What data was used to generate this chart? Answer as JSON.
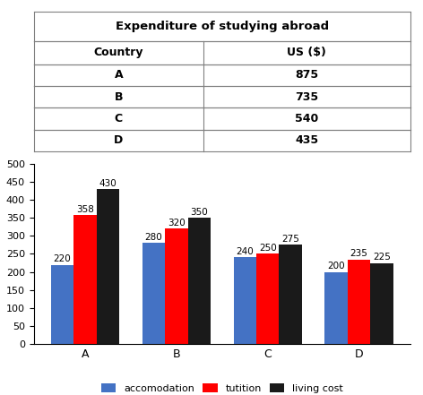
{
  "table_title": "Expenditure of studying abroad",
  "table_headers": [
    "Country",
    "US ($)"
  ],
  "table_rows": [
    [
      "A",
      "875"
    ],
    [
      "B",
      "735"
    ],
    [
      "C",
      "540"
    ],
    [
      "D",
      "435"
    ]
  ],
  "categories": [
    "A",
    "B",
    "C",
    "D"
  ],
  "accommodation": [
    220,
    280,
    240,
    200
  ],
  "tuition": [
    358,
    320,
    250,
    235
  ],
  "living_cost": [
    430,
    350,
    275,
    225
  ],
  "bar_colors": [
    "#4472C4",
    "#FF0000",
    "#1A1A1A"
  ],
  "legend_labels": [
    "accomodation",
    "tutition",
    "living cost"
  ],
  "ylim": [
    0,
    500
  ],
  "yticks": [
    0,
    50,
    100,
    150,
    200,
    250,
    300,
    350,
    400,
    450,
    500
  ],
  "bar_width": 0.25,
  "col_split": 0.45
}
